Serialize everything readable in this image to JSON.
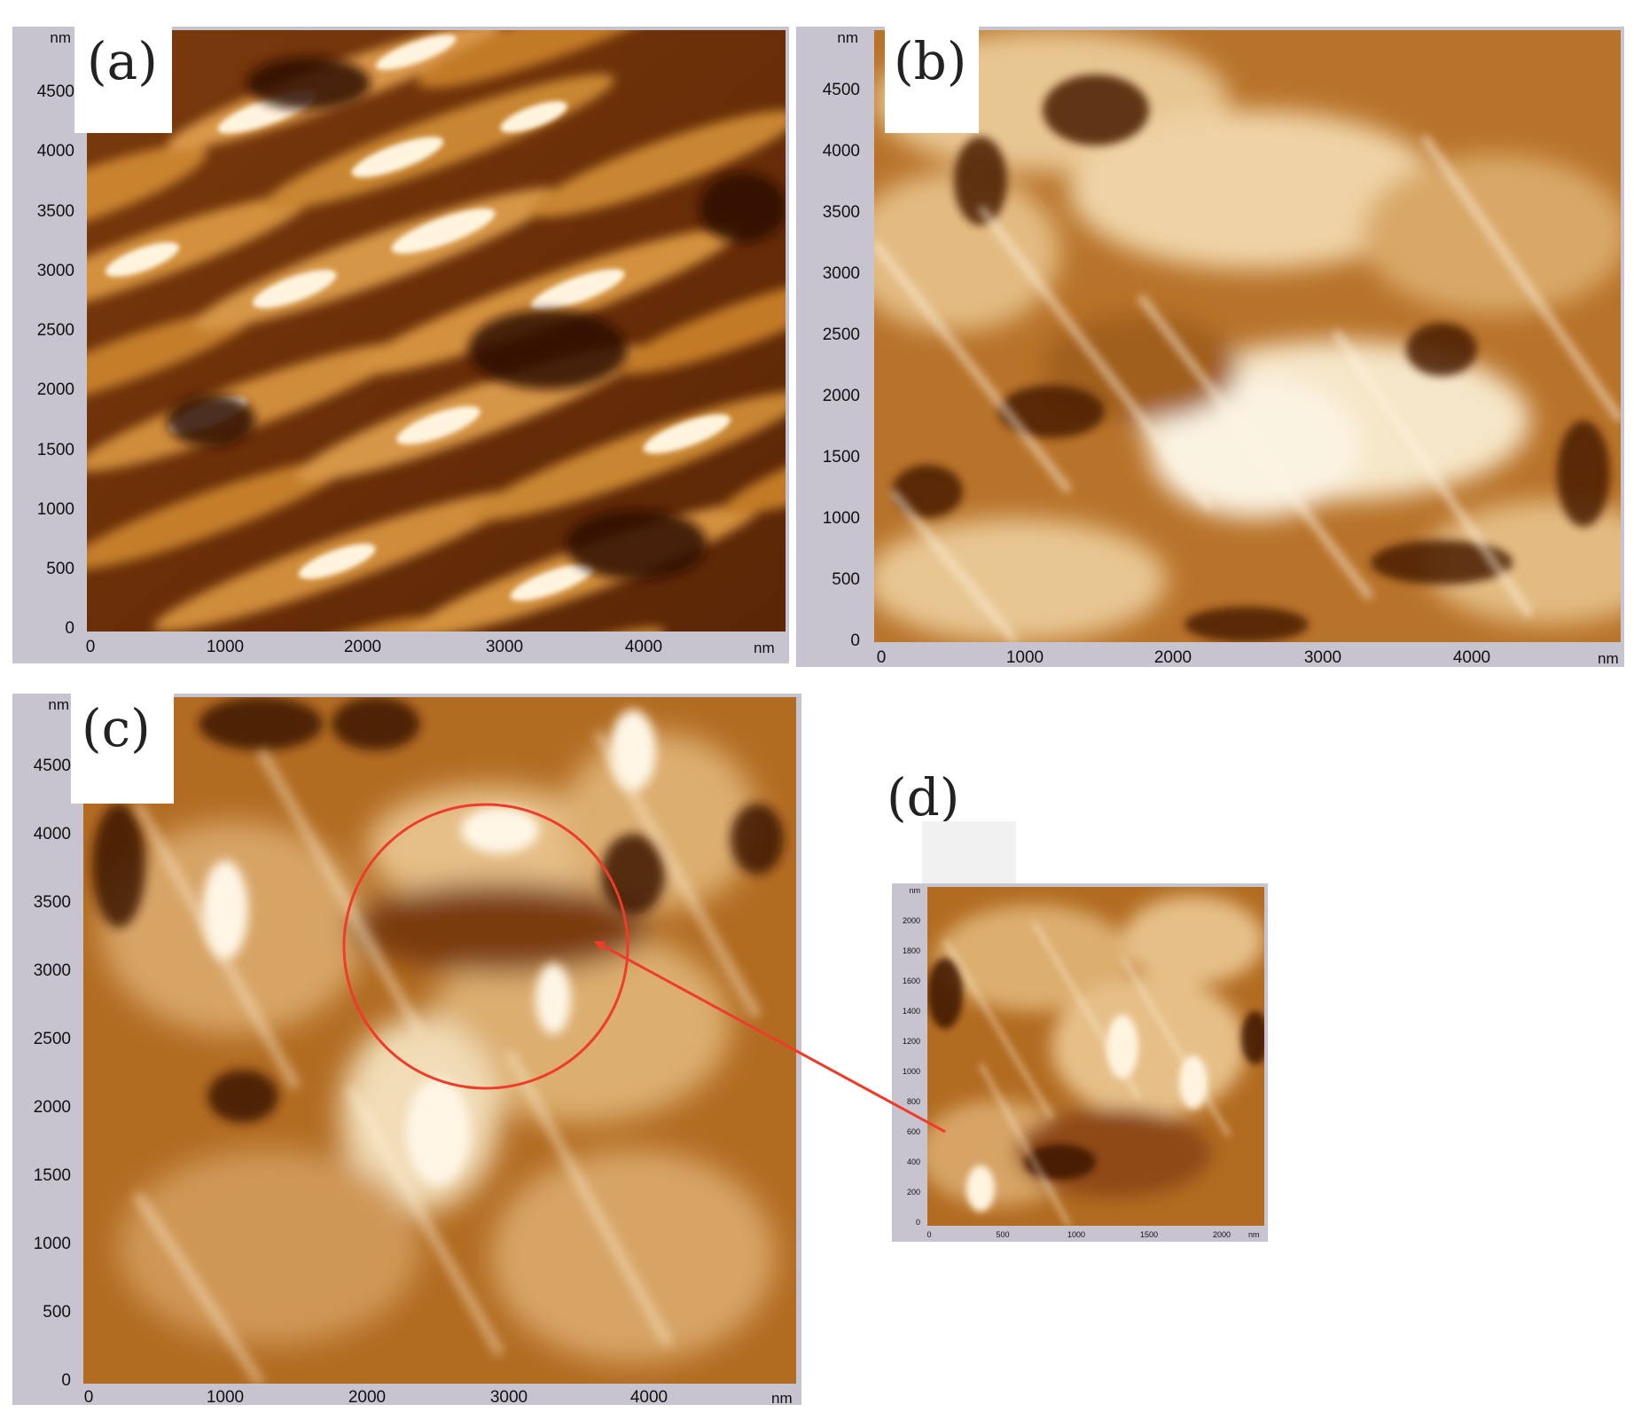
{
  "panels": {
    "a": {
      "label": "(a)",
      "y_unit": "nm",
      "x_unit": "nm",
      "y_ticks": [
        "4500",
        "4000",
        "3500",
        "3000",
        "2500",
        "2000",
        "1500",
        "1000",
        "500",
        "0"
      ],
      "x_ticks": [
        "0",
        "1000",
        "2000",
        "3000",
        "4000"
      ]
    },
    "b": {
      "label": "(b)",
      "y_unit": "nm",
      "x_unit": "nm",
      "y_ticks": [
        "4500",
        "4000",
        "3500",
        "3000",
        "2500",
        "2000",
        "1500",
        "1000",
        "500",
        "0"
      ],
      "x_ticks": [
        "0",
        "1000",
        "2000",
        "3000",
        "4000"
      ]
    },
    "c": {
      "label": "(c)",
      "y_unit": "nm",
      "x_unit": "nm",
      "y_ticks": [
        "4500",
        "4000",
        "3500",
        "3000",
        "2500",
        "2000",
        "1500",
        "1000",
        "500",
        "0"
      ],
      "x_ticks": [
        "0",
        "1000",
        "2000",
        "3000",
        "4000"
      ]
    },
    "d": {
      "label": "(d)",
      "y_unit": "nm",
      "x_unit": "nm",
      "y_ticks": [
        "2000",
        "1800",
        "1600",
        "1400",
        "1200",
        "1000",
        "800",
        "600",
        "400",
        "200",
        "0"
      ],
      "x_ticks": [
        "0",
        "500",
        "1000",
        "1500",
        "2000"
      ]
    }
  },
  "colors": {
    "frame": "#c7c3cf",
    "annotation": "#ee3b2a",
    "afm_dark": "#3a1402",
    "afm_mid": "#b0671c",
    "afm_light": "#fbf3e2"
  }
}
